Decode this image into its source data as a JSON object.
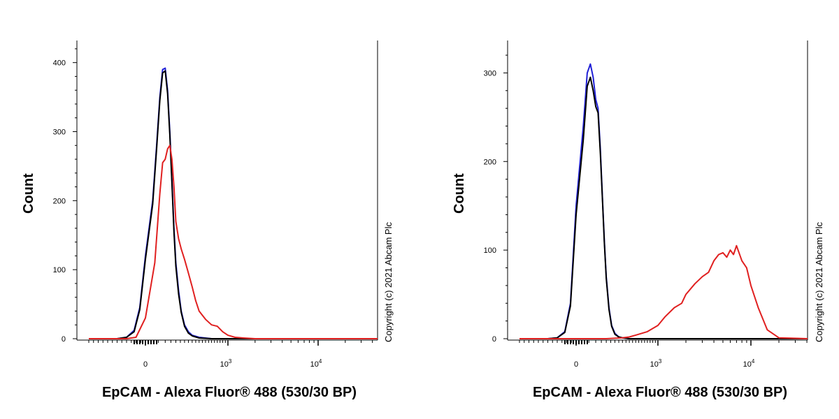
{
  "chart_data": [
    {
      "type": "line",
      "xlabel": "EpCAM - Alexa Fluor® 488 (530/30 BP)",
      "ylabel": "Count",
      "copyright": "Copyright (c) 2021 Abcam Plc",
      "ylim": [
        0,
        430
      ],
      "yticks": [
        "0",
        "100",
        "200",
        "300",
        "400"
      ],
      "ytick_values": [
        0,
        100,
        200,
        300,
        400
      ],
      "xticks": [
        "0",
        "10",
        "10"
      ],
      "xtick_sups": [
        "",
        "3",
        "4"
      ],
      "xtick_values": [
        0,
        1000,
        10000
      ],
      "x_scale": "biexponential",
      "xlim": [
        -300,
        50000
      ],
      "colors": {
        "blue": "#1f1fd6",
        "black": "#000000",
        "red": "#e02020"
      },
      "series": [
        {
          "color_key": "blue",
          "x": [
            -300,
            -150,
            -100,
            -60,
            -30,
            0,
            20,
            40,
            60,
            80,
            100,
            120,
            140,
            160,
            180,
            200,
            230,
            260,
            300,
            350,
            400,
            500,
            700,
            1000,
            50000
          ],
          "values": [
            0,
            0,
            2,
            12,
            45,
            120,
            200,
            280,
            350,
            390,
            392,
            360,
            300,
            230,
            160,
            110,
            70,
            40,
            20,
            10,
            5,
            2,
            0,
            0,
            0
          ]
        },
        {
          "color_key": "black",
          "x": [
            -300,
            -150,
            -100,
            -60,
            -30,
            0,
            20,
            40,
            60,
            80,
            100,
            120,
            140,
            160,
            180,
            200,
            230,
            260,
            300,
            350,
            400,
            500,
            700,
            1000,
            50000
          ],
          "values": [
            0,
            0,
            2,
            10,
            42,
            115,
            195,
            275,
            345,
            385,
            388,
            355,
            295,
            225,
            155,
            105,
            65,
            38,
            18,
            8,
            4,
            1,
            0,
            0,
            0
          ]
        },
        {
          "color_key": "red",
          "x": [
            -300,
            -100,
            -50,
            0,
            30,
            60,
            80,
            100,
            120,
            140,
            160,
            180,
            200,
            230,
            260,
            300,
            350,
            400,
            450,
            500,
            600,
            700,
            800,
            900,
            1000,
            1200,
            1500,
            2000,
            50000
          ],
          "values": [
            0,
            0,
            2,
            30,
            110,
            210,
            255,
            260,
            275,
            280,
            260,
            220,
            170,
            145,
            130,
            115,
            95,
            75,
            55,
            40,
            28,
            20,
            18,
            10,
            5,
            2,
            1,
            0,
            0
          ]
        }
      ]
    },
    {
      "type": "line",
      "xlabel": "EpCAM - Alexa Fluor® 488 (530/30 BP)",
      "ylabel": "Count",
      "copyright": "Copyright (c) 2021 Abcam Plc",
      "ylim": [
        0,
        335
      ],
      "yticks": [
        "0",
        "100",
        "200",
        "300"
      ],
      "ytick_values": [
        0,
        100,
        200,
        300
      ],
      "xticks": [
        "0",
        "10",
        "10"
      ],
      "xtick_sups": [
        "",
        "3",
        "4"
      ],
      "xtick_values": [
        0,
        1000,
        10000
      ],
      "x_scale": "biexponential",
      "xlim": [
        -300,
        50000
      ],
      "colors": {
        "blue": "#1f1fd6",
        "black": "#000000",
        "red": "#e02020"
      },
      "series": [
        {
          "color_key": "blue",
          "x": [
            -300,
            -150,
            -100,
            -60,
            -30,
            0,
            20,
            40,
            60,
            80,
            100,
            120,
            140,
            160,
            180,
            200,
            230,
            260,
            300,
            350,
            400,
            500,
            700,
            50000
          ],
          "values": [
            0,
            0,
            1,
            8,
            40,
            150,
            240,
            300,
            310,
            295,
            270,
            260,
            215,
            160,
            110,
            70,
            35,
            15,
            6,
            2,
            1,
            0,
            0,
            0
          ]
        },
        {
          "color_key": "black",
          "x": [
            -300,
            -150,
            -100,
            -60,
            -30,
            0,
            20,
            40,
            60,
            80,
            100,
            120,
            140,
            160,
            180,
            200,
            230,
            260,
            300,
            350,
            400,
            500,
            700,
            50000
          ],
          "values": [
            0,
            0,
            1,
            7,
            37,
            140,
            225,
            285,
            295,
            280,
            262,
            255,
            210,
            158,
            108,
            68,
            33,
            14,
            5,
            2,
            1,
            0,
            0,
            0
          ]
        },
        {
          "color_key": "red",
          "x": [
            -300,
            200,
            400,
            500,
            600,
            800,
            1000,
            1200,
            1500,
            1800,
            2000,
            2500,
            3000,
            3500,
            4000,
            4500,
            5000,
            5500,
            6000,
            6500,
            7000,
            8000,
            9000,
            10000,
            12000,
            15000,
            20000,
            50000
          ],
          "values": [
            0,
            0,
            1,
            2,
            4,
            8,
            15,
            25,
            35,
            40,
            50,
            62,
            70,
            75,
            88,
            95,
            97,
            92,
            100,
            95,
            105,
            88,
            80,
            60,
            35,
            10,
            1,
            0
          ]
        }
      ]
    }
  ]
}
